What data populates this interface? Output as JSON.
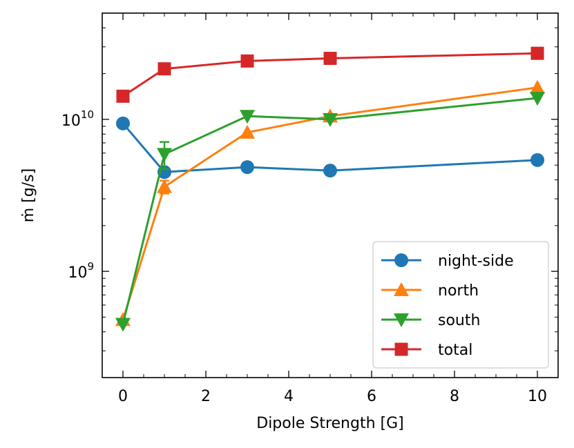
{
  "chart_data": {
    "type": "line",
    "title": "",
    "xlabel": "Dipole Strength [G]",
    "ylabel": "ṁ [g/s]",
    "xlim": [
      -0.5,
      10.5
    ],
    "ylim": [
      200000000.0,
      50000000000.0
    ],
    "yscale": "log",
    "x_ticks": [
      0,
      2,
      4,
      6,
      8,
      10
    ],
    "y_ticks": [
      {
        "value": 1000000000.0,
        "base": "10",
        "exponent": "9"
      },
      {
        "value": 10000000000.0,
        "base": "10",
        "exponent": "10"
      }
    ],
    "grid": false,
    "legend_position": "lower-right",
    "x": [
      0,
      1,
      3,
      5,
      10
    ],
    "series": [
      {
        "name": "night-side",
        "marker": "circle",
        "color": "#1f77b4",
        "values": [
          9400000000.0,
          4500000000.0,
          4850000000.0,
          4600000000.0,
          5400000000.0
        ]
      },
      {
        "name": "north",
        "marker": "triangle-up",
        "color": "#ff7f0e",
        "values": [
          480000000.0,
          3600000000.0,
          8200000000.0,
          10500000000.0,
          16200000000.0
        ],
        "error": [
          null,
          350000000.0,
          null,
          null,
          null
        ]
      },
      {
        "name": "south",
        "marker": "triangle-down",
        "color": "#2ca02c",
        "values": [
          450000000.0,
          5900000000.0,
          10500000000.0,
          10000000000.0,
          13800000000.0
        ],
        "error": [
          null,
          1200000000.0,
          null,
          null,
          null
        ]
      },
      {
        "name": "total",
        "marker": "square",
        "color": "#d62728",
        "values": [
          14200000000.0,
          21500000000.0,
          24200000000.0,
          25200000000.0,
          27200000000.0
        ]
      }
    ]
  }
}
